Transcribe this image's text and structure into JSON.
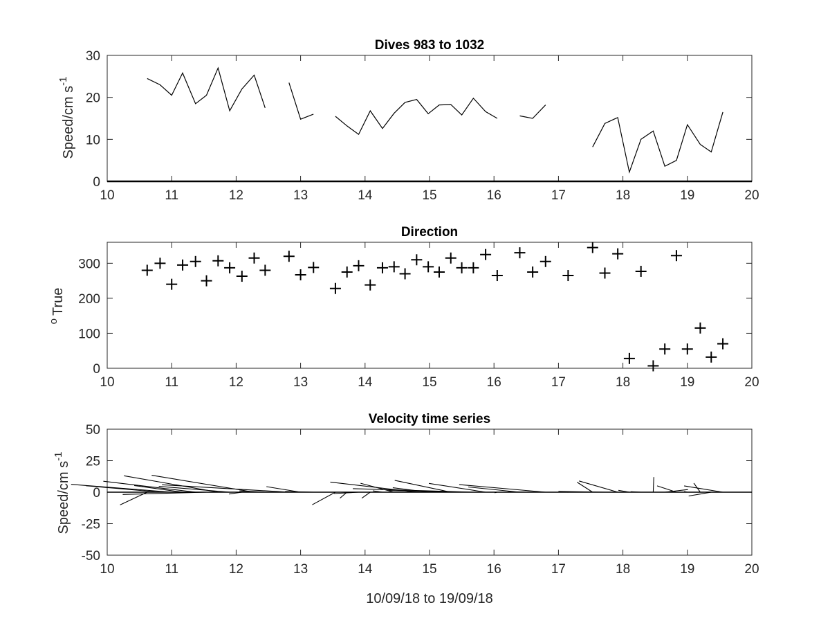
{
  "chart_data": [
    {
      "type": "line",
      "title": "Dives 983 to 1032",
      "ylabel_main": "Speed/cm s",
      "ylabel_sup": "-1",
      "xlim": [
        10,
        20
      ],
      "ylim": [
        0,
        30
      ],
      "xticks": [
        "10",
        "11",
        "12",
        "13",
        "14",
        "15",
        "16",
        "17",
        "18",
        "19",
        "20"
      ],
      "yticks": [
        "0",
        "10",
        "20",
        "30"
      ],
      "zero_line": true,
      "segments": [
        {
          "x": [
            10.62,
            10.82,
            11.0,
            11.17,
            11.37,
            11.54,
            11.72,
            11.9,
            12.09,
            12.28,
            12.45
          ],
          "y": [
            24.5,
            23.0,
            20.5,
            25.8,
            18.5,
            20.5,
            27.0,
            16.8,
            22.0,
            25.3,
            17.5
          ]
        },
        {
          "x": [
            12.82,
            13.0,
            13.2
          ],
          "y": [
            23.5,
            14.8,
            16.0
          ]
        },
        {
          "x": [
            13.54,
            13.72,
            13.9,
            14.08,
            14.27,
            14.45,
            14.62,
            14.8,
            14.98,
            15.15,
            15.33,
            15.5,
            15.68,
            15.87,
            16.05
          ],
          "y": [
            15.5,
            13.2,
            11.2,
            16.8,
            12.6,
            16.2,
            18.8,
            19.5,
            16.1,
            18.2,
            18.3,
            15.8,
            19.8,
            16.6,
            15.0
          ]
        },
        {
          "x": [
            16.4,
            16.6,
            16.8
          ],
          "y": [
            15.6,
            15.0,
            18.2
          ]
        },
        {
          "x": [
            17.53,
            17.72,
            17.92,
            18.1,
            18.28,
            18.47,
            18.65,
            18.83,
            19.0,
            19.2,
            19.37,
            19.55
          ],
          "y": [
            8.2,
            13.8,
            15.2,
            2.2,
            10.0,
            12.0,
            3.6,
            5.0,
            13.5,
            8.8,
            7.0,
            16.5
          ]
        }
      ]
    },
    {
      "type": "scatter",
      "marker": "+",
      "title": "Direction",
      "ylabel_main": "True",
      "ylabel_pre": "o",
      "xlim": [
        10,
        20
      ],
      "ylim": [
        0,
        360
      ],
      "xticks": [
        "10",
        "11",
        "12",
        "13",
        "14",
        "15",
        "16",
        "17",
        "18",
        "19",
        "20"
      ],
      "yticks": [
        "0",
        "100",
        "200",
        "300"
      ],
      "x": [
        10.62,
        10.82,
        11.0,
        11.17,
        11.37,
        11.54,
        11.72,
        11.9,
        12.09,
        12.28,
        12.45,
        12.82,
        13.0,
        13.2,
        13.54,
        13.72,
        13.9,
        14.08,
        14.27,
        14.45,
        14.62,
        14.8,
        14.98,
        15.15,
        15.33,
        15.5,
        15.68,
        15.87,
        16.05,
        16.4,
        16.6,
        16.8,
        17.15,
        17.53,
        17.72,
        17.92,
        18.1,
        18.28,
        18.47,
        18.65,
        18.83,
        19.0,
        19.2,
        19.37,
        19.55
      ],
      "y": [
        280,
        300,
        240,
        295,
        305,
        250,
        307,
        287,
        263,
        315,
        280,
        320,
        267,
        288,
        228,
        275,
        293,
        238,
        287,
        290,
        270,
        310,
        290,
        275,
        315,
        287,
        287,
        325,
        265,
        330,
        275,
        305,
        265,
        345,
        272,
        327,
        28,
        277,
        7,
        55,
        322,
        55,
        115,
        32,
        70
      ]
    },
    {
      "type": "stick",
      "title": "Velocity time series",
      "ylabel_main": "Speed/cm s",
      "ylabel_sup": "-1",
      "xlabel": "10/09/18 to 19/09/18",
      "xlim": [
        10,
        20
      ],
      "ylim": [
        -50,
        50
      ],
      "xticks": [
        "10",
        "11",
        "12",
        "13",
        "14",
        "15",
        "16",
        "17",
        "18",
        "19",
        "20"
      ],
      "yticks": [
        "-50",
        "-25",
        "0",
        "25",
        "50"
      ],
      "t": [
        10.62,
        10.82,
        11.0,
        11.17,
        11.37,
        11.54,
        11.72,
        11.9,
        12.09,
        12.28,
        12.45,
        12.82,
        13.0,
        13.2,
        13.54,
        13.72,
        13.9,
        14.08,
        14.27,
        14.45,
        14.62,
        14.8,
        14.98,
        15.15,
        15.33,
        15.5,
        15.68,
        15.87,
        16.05,
        16.4,
        16.6,
        16.8,
        17.15,
        17.53,
        17.72,
        17.92,
        18.1,
        18.28,
        18.47,
        18.65,
        18.83,
        19.0,
        19.2,
        19.37,
        19.55
      ],
      "u": [
        -4.2,
        -11.5,
        -15.6,
        -7.5,
        -14.3,
        -13.0,
        -14.6,
        -11.0,
        -2.0,
        -15.9,
        -4.0,
        -19.7,
        -5.3,
        -4.4,
        -3.6,
        -1.1,
        -3.8,
        -1.3,
        -1.5,
        -5.2,
        -1.7,
        -13.4,
        -5.5,
        -5.0,
        -8.7,
        -11.4,
        -18.7,
        -8.8,
        -0.4,
        -8.0,
        -3.9,
        -13.4,
        -0.1,
        -2.4,
        -7.2,
        -6.0,
        -1.7,
        -1.6,
        0.1,
        3.6,
        -3.0,
        -0.5,
        -1.0,
        -3.5,
        -6.0
      ],
      "v": [
        -10.1,
        5.1,
        6.2,
        5.3,
        8.7,
        -1.8,
        13.0,
        4.6,
        -1.5,
        13.4,
        1.0,
        5.9,
        4.4,
        0.5,
        -10.0,
        -4.8,
        -1.1,
        -4.8,
        1.1,
        7.1,
        0.1,
        8.0,
        3.5,
        0.1,
        9.4,
        1.4,
        2.8,
        7.0,
        -0.5,
        4.1,
        0.3,
        6.0,
        0.0,
        7.9,
        0.6,
        8.9,
        1.5,
        0.4,
        12.0,
        2.1,
        5.0,
        0.5,
        7.2,
        -3.0,
        5.0
      ]
    }
  ]
}
